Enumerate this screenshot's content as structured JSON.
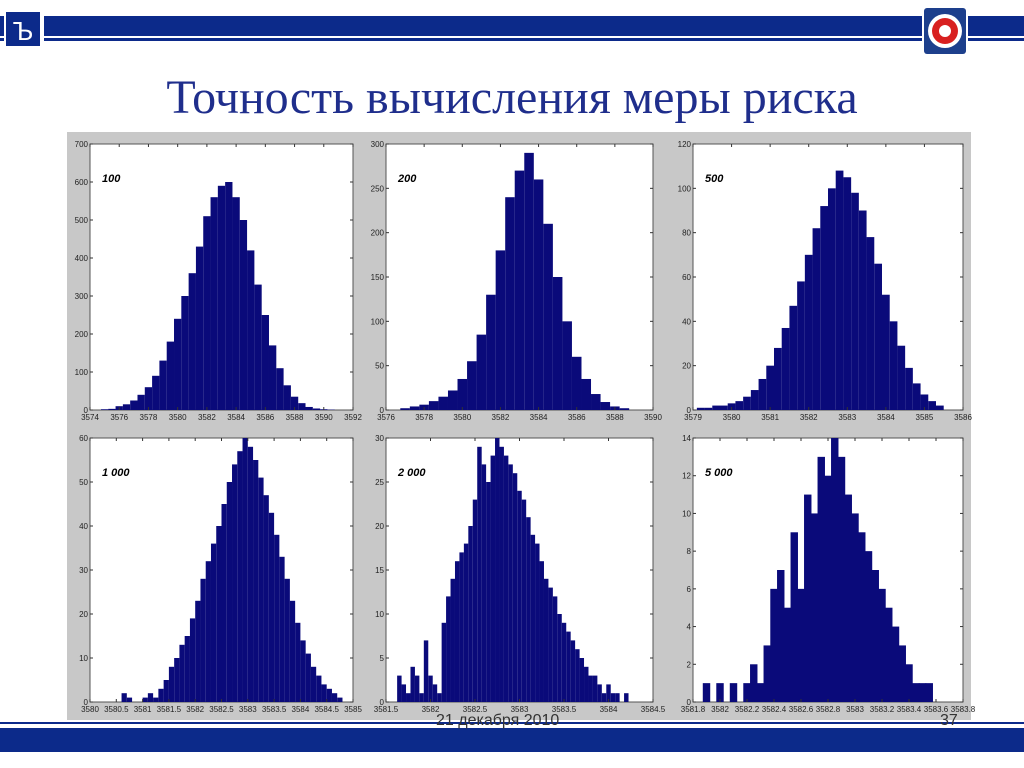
{
  "slide": {
    "title": "Точность вычисления меры риска",
    "date": "21 декабря 2010",
    "page": "37"
  },
  "colors": {
    "bar_fill": "#0a0a7a",
    "header": "#0c2a8a",
    "title": "#1f2e8c",
    "frame": "#c8c8c8"
  },
  "logos": {
    "left": "hse-logo",
    "right": "fermlab-logo"
  },
  "chart_data": [
    {
      "type": "bar",
      "annotation": "100",
      "x": [
        3575.0,
        3575.5,
        3576.0,
        3576.5,
        3577.0,
        3577.5,
        3578.0,
        3578.5,
        3579.0,
        3579.5,
        3580.0,
        3580.5,
        3581.0,
        3581.5,
        3582.0,
        3582.5,
        3583.0,
        3583.5,
        3584.0,
        3584.5,
        3585.0,
        3585.5,
        3586.0,
        3586.5,
        3587.0,
        3587.5,
        3588.0,
        3588.5,
        3589.0,
        3589.5,
        3590.0,
        3590.5
      ],
      "values": [
        2,
        3,
        10,
        15,
        25,
        40,
        60,
        90,
        130,
        180,
        240,
        300,
        360,
        430,
        510,
        560,
        590,
        600,
        560,
        500,
        420,
        330,
        250,
        170,
        110,
        65,
        35,
        18,
        8,
        4,
        2,
        1
      ],
      "xlim": [
        3574,
        3592
      ],
      "ylim": [
        0,
        700
      ],
      "xticks": [
        3574,
        3576,
        3578,
        3580,
        3582,
        3584,
        3586,
        3588,
        3590,
        3592
      ],
      "yticks": [
        0,
        100,
        200,
        300,
        400,
        500,
        600,
        700
      ]
    },
    {
      "type": "bar",
      "annotation": "200",
      "x": [
        3577.0,
        3577.5,
        3578.0,
        3578.5,
        3579.0,
        3579.5,
        3580.0,
        3580.5,
        3581.0,
        3581.5,
        3582.0,
        3582.5,
        3583.0,
        3583.5,
        3584.0,
        3584.5,
        3585.0,
        3585.5,
        3586.0,
        3586.5,
        3587.0,
        3587.5,
        3588.0,
        3588.5
      ],
      "values": [
        2,
        4,
        6,
        10,
        15,
        22,
        35,
        55,
        85,
        130,
        180,
        240,
        270,
        290,
        260,
        210,
        150,
        100,
        60,
        35,
        18,
        9,
        4,
        2
      ],
      "xlim": [
        3576,
        3590
      ],
      "ylim": [
        0,
        300
      ],
      "xticks": [
        3576,
        3578,
        3580,
        3582,
        3584,
        3586,
        3588,
        3590
      ],
      "yticks": [
        0,
        50,
        100,
        150,
        200,
        250,
        300
      ]
    },
    {
      "type": "bar",
      "annotation": "500",
      "x": [
        3579.2,
        3579.4,
        3579.6,
        3579.8,
        3580.0,
        3580.2,
        3580.4,
        3580.6,
        3580.8,
        3581.0,
        3581.2,
        3581.4,
        3581.6,
        3581.8,
        3582.0,
        3582.2,
        3582.4,
        3582.6,
        3582.8,
        3583.0,
        3583.2,
        3583.4,
        3583.6,
        3583.8,
        3584.0,
        3584.2,
        3584.4,
        3584.6,
        3584.8,
        3585.0,
        3585.2,
        3585.4
      ],
      "values": [
        1,
        1,
        2,
        2,
        3,
        4,
        6,
        9,
        14,
        20,
        28,
        37,
        47,
        58,
        70,
        82,
        92,
        100,
        108,
        105,
        98,
        90,
        78,
        66,
        52,
        40,
        29,
        19,
        12,
        7,
        4,
        2
      ],
      "xlim": [
        3579,
        3586
      ],
      "ylim": [
        0,
        120
      ],
      "xticks": [
        3579,
        3580,
        3581,
        3582,
        3583,
        3584,
        3585,
        3586
      ],
      "yticks": [
        0,
        20,
        40,
        60,
        80,
        100,
        120
      ]
    },
    {
      "type": "bar",
      "annotation": "1 000",
      "x": [
        3580.65,
        3580.75,
        3580.85,
        3580.95,
        3581.05,
        3581.15,
        3581.25,
        3581.35,
        3581.45,
        3581.55,
        3581.65,
        3581.75,
        3581.85,
        3581.95,
        3582.05,
        3582.15,
        3582.25,
        3582.35,
        3582.45,
        3582.55,
        3582.65,
        3582.75,
        3582.85,
        3582.95,
        3583.05,
        3583.15,
        3583.25,
        3583.35,
        3583.45,
        3583.55,
        3583.65,
        3583.75,
        3583.85,
        3583.95,
        3584.05,
        3584.15,
        3584.25,
        3584.35,
        3584.45,
        3584.55,
        3584.65,
        3584.75
      ],
      "values": [
        2,
        1,
        0,
        0,
        1,
        2,
        1,
        3,
        5,
        8,
        10,
        13,
        15,
        19,
        23,
        28,
        32,
        36,
        40,
        45,
        50,
        54,
        57,
        60,
        58,
        55,
        51,
        47,
        43,
        38,
        33,
        28,
        23,
        18,
        14,
        11,
        8,
        6,
        4,
        3,
        2,
        1
      ],
      "xlim": [
        3580,
        3585
      ],
      "ylim": [
        0,
        60
      ],
      "xticks": [
        3580,
        3580.5,
        3581,
        3581.5,
        3582,
        3582.5,
        3583,
        3583.5,
        3584,
        3584.5,
        3585
      ],
      "yticks": [
        0,
        10,
        20,
        30,
        40,
        50,
        60
      ]
    },
    {
      "type": "bar",
      "annotation": "2 000",
      "x": [
        3581.65,
        3581.7,
        3581.75,
        3581.8,
        3581.85,
        3581.9,
        3581.95,
        3582.0,
        3582.05,
        3582.1,
        3582.15,
        3582.2,
        3582.25,
        3582.3,
        3582.35,
        3582.4,
        3582.45,
        3582.5,
        3582.55,
        3582.6,
        3582.65,
        3582.7,
        3582.75,
        3582.8,
        3582.85,
        3582.9,
        3582.95,
        3583.0,
        3583.05,
        3583.1,
        3583.15,
        3583.2,
        3583.25,
        3583.3,
        3583.35,
        3583.4,
        3583.45,
        3583.5,
        3583.55,
        3583.6,
        3583.65,
        3583.7,
        3583.75,
        3583.8,
        3583.85,
        3583.9,
        3583.95,
        3584.0,
        3584.05,
        3584.1,
        3584.15,
        3584.2
      ],
      "values": [
        3,
        2,
        1,
        4,
        3,
        1,
        7,
        3,
        2,
        1,
        9,
        12,
        14,
        16,
        17,
        18,
        20,
        23,
        29,
        27,
        25,
        28,
        30,
        29,
        28,
        27,
        26,
        24,
        23,
        21,
        19,
        18,
        16,
        14,
        13,
        12,
        10,
        9,
        8,
        7,
        6,
        5,
        4,
        3,
        3,
        2,
        1,
        2,
        1,
        1,
        0,
        1
      ],
      "xlim": [
        3581.5,
        3584.5
      ],
      "ylim": [
        0,
        30
      ],
      "xticks": [
        3581.5,
        3582,
        3582.5,
        3583,
        3583.5,
        3584,
        3584.5
      ],
      "yticks": [
        0,
        5,
        10,
        15,
        20,
        25,
        30
      ]
    },
    {
      "type": "bar",
      "annotation": "5 000",
      "x": [
        3581.9,
        3582.0,
        3582.1,
        3582.2,
        3582.25,
        3582.3,
        3582.35,
        3582.4,
        3582.45,
        3582.5,
        3582.55,
        3582.6,
        3582.65,
        3582.7,
        3582.75,
        3582.8,
        3582.85,
        3582.9,
        3582.95,
        3583.0,
        3583.05,
        3583.1,
        3583.15,
        3583.2,
        3583.25,
        3583.3,
        3583.35,
        3583.4,
        3583.45,
        3583.5,
        3583.55
      ],
      "values": [
        1,
        1,
        1,
        1,
        2,
        1,
        3,
        6,
        7,
        5,
        9,
        6,
        11,
        10,
        13,
        12,
        14,
        13,
        11,
        10,
        9,
        8,
        7,
        6,
        5,
        4,
        3,
        2,
        1,
        1,
        1
      ],
      "xlim": [
        3581.8,
        3583.8
      ],
      "ylim": [
        0,
        14
      ],
      "xticks": [
        3581.8,
        3582,
        3582.2,
        3582.4,
        3582.6,
        3582.8,
        3583,
        3583.2,
        3583.4,
        3583.6,
        3583.8
      ],
      "yticks": [
        0,
        2,
        4,
        6,
        8,
        10,
        12,
        14
      ]
    }
  ]
}
